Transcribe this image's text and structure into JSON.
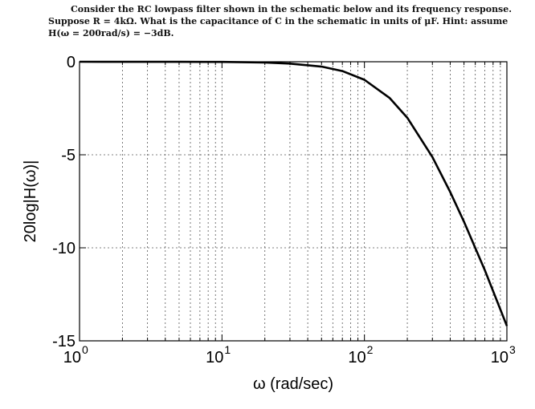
{
  "question": {
    "line1": "Consider the RC lowpass filter shown in the schematic below and its frequency response.",
    "line2": "Suppose R = 4kΩ. What is the capacitance of C in the schematic in units of μF. Hint: assume",
    "line3": "H(ω = 200rad/s) = −3dB."
  },
  "chart_data": {
    "type": "line",
    "title": "",
    "xlabel": "ω (rad/sec)",
    "ylabel": "20log|H(ω)|",
    "xscale": "log",
    "xlim": [
      1,
      1000
    ],
    "ylim": [
      -15,
      0
    ],
    "grid": true,
    "x_ticks": [
      {
        "value": 1,
        "base": "10",
        "exp": "0"
      },
      {
        "value": 10,
        "base": "10",
        "exp": "1"
      },
      {
        "value": 100,
        "base": "10",
        "exp": "2"
      },
      {
        "value": 1000,
        "base": "10",
        "exp": "3"
      }
    ],
    "y_ticks": [
      {
        "value": 0,
        "label": "0"
      },
      {
        "value": -5,
        "label": "-5"
      },
      {
        "value": -10,
        "label": "-10"
      },
      {
        "value": -15,
        "label": "-15"
      }
    ],
    "series": [
      {
        "color": "#000000",
        "x": [
          1,
          5,
          10,
          20,
          30,
          50,
          70,
          100,
          150,
          200,
          300,
          400,
          500,
          700,
          1000
        ],
        "y": [
          0,
          -0.003,
          -0.01,
          -0.04,
          -0.1,
          -0.26,
          -0.5,
          -0.97,
          -1.94,
          -3.01,
          -5.12,
          -7.0,
          -8.6,
          -11.2,
          -14.2
        ]
      }
    ]
  }
}
